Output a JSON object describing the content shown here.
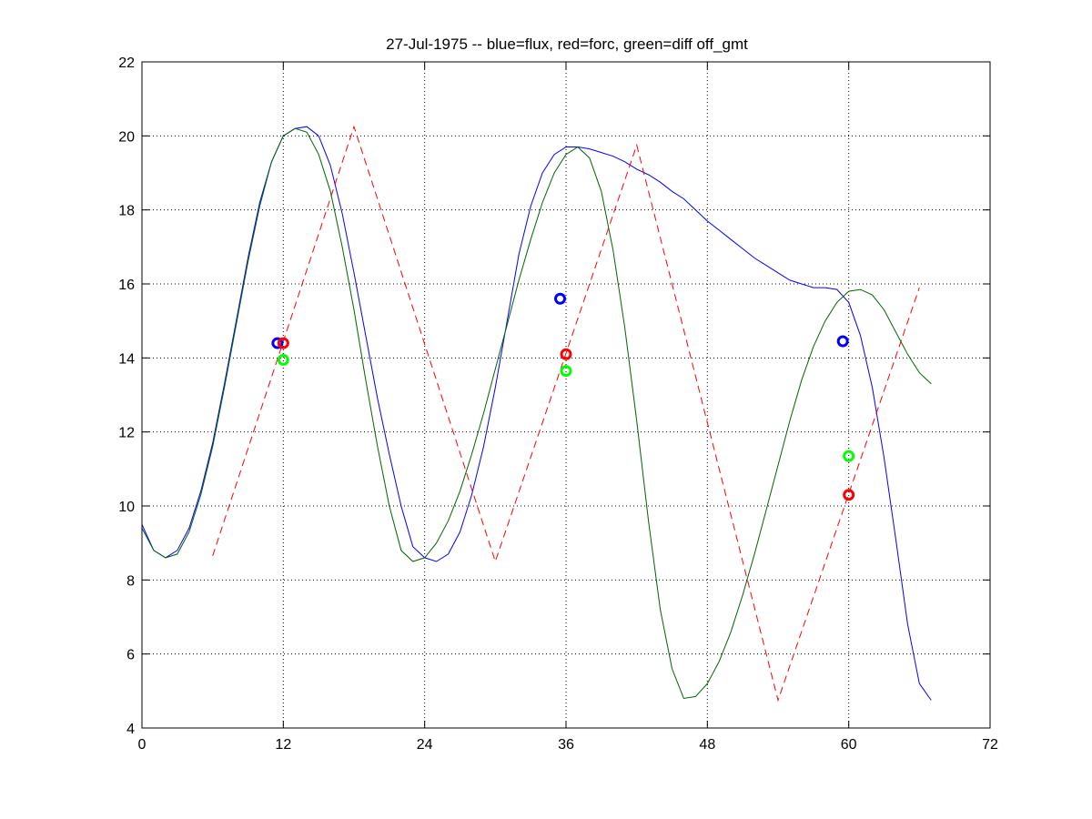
{
  "chart_data": {
    "type": "line",
    "title": "27-Jul-1975 -- blue=flux, red=forc, green=diff off_gmt",
    "xlabel": "",
    "ylabel": "",
    "xlim": [
      0,
      72
    ],
    "ylim": [
      4,
      22
    ],
    "xticks": [
      0,
      12,
      24,
      36,
      48,
      60,
      72
    ],
    "yticks": [
      4,
      6,
      8,
      10,
      12,
      14,
      16,
      18,
      20,
      22
    ],
    "xtick_labels": [
      "0",
      "12",
      "24",
      "36",
      "48",
      "60",
      "72"
    ],
    "ytick_labels": [
      "4",
      "6",
      "8",
      "10",
      "12",
      "14",
      "16",
      "18",
      "20",
      "22"
    ],
    "grid": true,
    "legend": "none",
    "series": [
      {
        "color": "#0000ff",
        "style": "solid",
        "points": [
          [
            0,
            9.5
          ],
          [
            1,
            8.8
          ],
          [
            2,
            8.6
          ],
          [
            3,
            8.8
          ],
          [
            4,
            9.4
          ],
          [
            5,
            10.4
          ],
          [
            6,
            11.7
          ],
          [
            7,
            13.3
          ],
          [
            8,
            15.0
          ],
          [
            9,
            16.7
          ],
          [
            10,
            18.2
          ],
          [
            11,
            19.3
          ],
          [
            12,
            20.0
          ],
          [
            13,
            20.2
          ],
          [
            14,
            20.25
          ],
          [
            15,
            20.0
          ],
          [
            16,
            19.2
          ],
          [
            17,
            17.9
          ],
          [
            18,
            16.3
          ],
          [
            19,
            14.6
          ],
          [
            20,
            12.9
          ],
          [
            21,
            11.4
          ],
          [
            22,
            10.0
          ],
          [
            23,
            8.9
          ],
          [
            24,
            8.6
          ],
          [
            25,
            8.5
          ],
          [
            26,
            8.7
          ],
          [
            27,
            9.3
          ],
          [
            28,
            10.3
          ],
          [
            29,
            11.6
          ],
          [
            30,
            13.2
          ],
          [
            31,
            15.0
          ],
          [
            32,
            16.8
          ],
          [
            33,
            18.1
          ],
          [
            34,
            19.0
          ],
          [
            35,
            19.5
          ],
          [
            36,
            19.7
          ],
          [
            37,
            19.7
          ],
          [
            38,
            19.65
          ],
          [
            39,
            19.55
          ],
          [
            40,
            19.45
          ],
          [
            41,
            19.3
          ],
          [
            42,
            19.1
          ],
          [
            43,
            18.95
          ],
          [
            44,
            18.75
          ],
          [
            45,
            18.5
          ],
          [
            46,
            18.3
          ],
          [
            47,
            18.0
          ],
          [
            48,
            17.7
          ],
          [
            49,
            17.45
          ],
          [
            50,
            17.2
          ],
          [
            51,
            16.95
          ],
          [
            52,
            16.7
          ],
          [
            53,
            16.5
          ],
          [
            54,
            16.3
          ],
          [
            55,
            16.1
          ],
          [
            56,
            16.0
          ],
          [
            57,
            15.9
          ],
          [
            58,
            15.9
          ],
          [
            59,
            15.85
          ],
          [
            60,
            15.5
          ],
          [
            61,
            14.6
          ],
          [
            62,
            13.2
          ],
          [
            63,
            11.3
          ],
          [
            64,
            9.1
          ],
          [
            65,
            6.8
          ],
          [
            66,
            5.2
          ],
          [
            67,
            4.75
          ]
        ]
      },
      {
        "color": "#ff0000",
        "style": "dashed",
        "points": [
          [
            6,
            8.65
          ],
          [
            18,
            20.25
          ],
          [
            30,
            8.5
          ],
          [
            42,
            19.75
          ],
          [
            54,
            4.75
          ],
          [
            66,
            15.9
          ]
        ]
      },
      {
        "color": "#006400",
        "style": "solid",
        "points": [
          [
            0,
            9.4
          ],
          [
            1,
            8.8
          ],
          [
            2,
            8.6
          ],
          [
            3,
            8.7
          ],
          [
            4,
            9.3
          ],
          [
            5,
            10.3
          ],
          [
            6,
            11.6
          ],
          [
            7,
            13.2
          ],
          [
            8,
            14.9
          ],
          [
            9,
            16.6
          ],
          [
            10,
            18.1
          ],
          [
            11,
            19.3
          ],
          [
            12,
            20.0
          ],
          [
            13,
            20.2
          ],
          [
            14,
            20.1
          ],
          [
            15,
            19.5
          ],
          [
            16,
            18.5
          ],
          [
            17,
            17.0
          ],
          [
            18,
            15.3
          ],
          [
            19,
            13.4
          ],
          [
            20,
            11.6
          ],
          [
            21,
            10.0
          ],
          [
            22,
            8.8
          ],
          [
            23,
            8.5
          ],
          [
            24,
            8.6
          ],
          [
            25,
            9.0
          ],
          [
            26,
            9.6
          ],
          [
            27,
            10.4
          ],
          [
            28,
            11.4
          ],
          [
            29,
            12.5
          ],
          [
            30,
            13.7
          ],
          [
            31,
            14.9
          ],
          [
            32,
            16.1
          ],
          [
            33,
            17.2
          ],
          [
            34,
            18.2
          ],
          [
            35,
            19.0
          ],
          [
            36,
            19.5
          ],
          [
            37,
            19.7
          ],
          [
            38,
            19.4
          ],
          [
            39,
            18.5
          ],
          [
            40,
            16.9
          ],
          [
            41,
            14.8
          ],
          [
            42,
            12.3
          ],
          [
            43,
            9.6
          ],
          [
            44,
            7.2
          ],
          [
            45,
            5.6
          ],
          [
            46,
            4.8
          ],
          [
            47,
            4.85
          ],
          [
            48,
            5.2
          ],
          [
            49,
            5.8
          ],
          [
            50,
            6.6
          ],
          [
            51,
            7.6
          ],
          [
            52,
            8.7
          ],
          [
            53,
            9.9
          ],
          [
            54,
            11.1
          ],
          [
            55,
            12.3
          ],
          [
            56,
            13.4
          ],
          [
            57,
            14.3
          ],
          [
            58,
            15.0
          ],
          [
            59,
            15.5
          ],
          [
            60,
            15.8
          ],
          [
            61,
            15.85
          ],
          [
            62,
            15.7
          ],
          [
            63,
            15.3
          ],
          [
            64,
            14.7
          ],
          [
            65,
            14.1
          ],
          [
            66,
            13.6
          ],
          [
            67,
            13.3
          ]
        ]
      }
    ],
    "markers": [
      {
        "x": 11.5,
        "y": 14.4,
        "color": "#0000ff"
      },
      {
        "x": 12.0,
        "y": 14.4,
        "color": "#ff0000"
      },
      {
        "x": 12.0,
        "y": 13.95,
        "color": "#00ff00"
      },
      {
        "x": 35.5,
        "y": 15.6,
        "color": "#0000ff"
      },
      {
        "x": 36.0,
        "y": 14.1,
        "color": "#ff0000"
      },
      {
        "x": 36.0,
        "y": 13.65,
        "color": "#00ff00"
      },
      {
        "x": 59.5,
        "y": 14.45,
        "color": "#0000ff"
      },
      {
        "x": 60.0,
        "y": 10.3,
        "color": "#ff0000"
      },
      {
        "x": 60.0,
        "y": 11.35,
        "color": "#00ff00"
      }
    ]
  }
}
